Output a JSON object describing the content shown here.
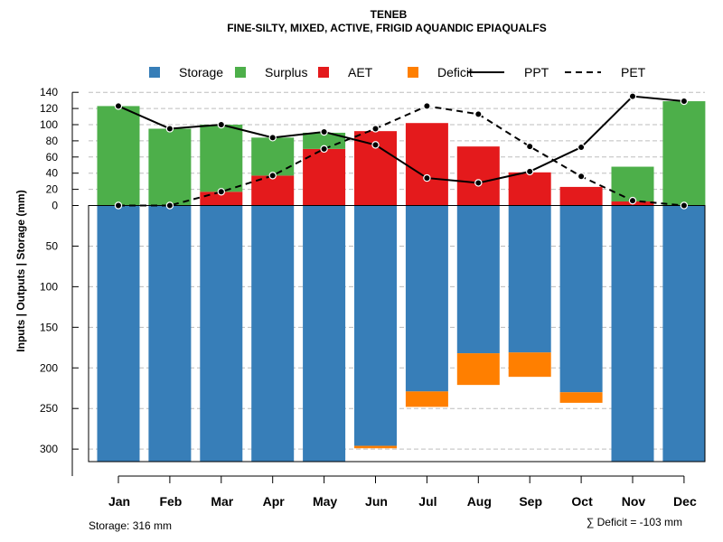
{
  "chart_data": {
    "type": "bar",
    "title": "TENEB",
    "subtitle": "FINE-SILTY, MIXED, ACTIVE, FRIGID AQUANDIC EPIAQUALFS",
    "ylabel": "Inputs | Outputs | Storage     (mm)",
    "categories": [
      "Jan",
      "Feb",
      "Mar",
      "Apr",
      "May",
      "Jun",
      "Jul",
      "Aug",
      "Sep",
      "Oct",
      "Nov",
      "Dec"
    ],
    "upper_ticks": [
      "0",
      "20",
      "40",
      "60",
      "80",
      "100",
      "120",
      "140"
    ],
    "lower_ticks": [
      "50",
      "100",
      "150",
      "200",
      "250",
      "300"
    ],
    "upper_ylim": [
      0,
      140
    ],
    "lower_ylim": [
      0,
      316
    ],
    "legend": [
      {
        "key": "storage",
        "label": "Storage",
        "kind": "square",
        "color": "#377EB8"
      },
      {
        "key": "surplus",
        "label": "Surplus",
        "kind": "square",
        "color": "#4DAF4A"
      },
      {
        "key": "aet",
        "label": "AET",
        "kind": "square",
        "color": "#E41A1C"
      },
      {
        "key": "deficit",
        "label": "Deficit",
        "kind": "square",
        "color": "#FF7F00"
      },
      {
        "key": "ppt",
        "label": "PPT",
        "kind": "solid",
        "color": "#000000"
      },
      {
        "key": "pet",
        "label": "PET",
        "kind": "dashed",
        "color": "#000000"
      }
    ],
    "series": [
      {
        "name": "AET",
        "values": [
          0,
          0,
          17,
          37,
          70,
          92,
          102,
          73,
          41,
          23,
          5,
          0
        ]
      },
      {
        "name": "Surplus",
        "values": [
          123,
          95,
          83,
          47,
          20,
          0,
          0,
          0,
          0,
          0,
          43,
          129
        ]
      },
      {
        "name": "Storage",
        "values": [
          316,
          316,
          316,
          316,
          316,
          296,
          229,
          182,
          181,
          230,
          316,
          316
        ]
      },
      {
        "name": "Deficit",
        "values": [
          0,
          0,
          0,
          0,
          0,
          3,
          19,
          39,
          30,
          13,
          0,
          0
        ]
      },
      {
        "name": "PPT",
        "values": [
          123,
          95,
          100,
          84,
          91,
          75,
          34,
          28,
          42,
          72,
          135,
          129
        ]
      },
      {
        "name": "PET",
        "values": [
          0,
          0,
          17,
          37,
          70,
          95,
          123,
          113,
          73,
          36,
          6,
          0
        ]
      }
    ],
    "storage_capacity": 316,
    "deficit_total": -103
  },
  "footer": {
    "storage_label": "Storage: 316 mm",
    "deficit_label": "∑ Deficit = -103 mm"
  }
}
